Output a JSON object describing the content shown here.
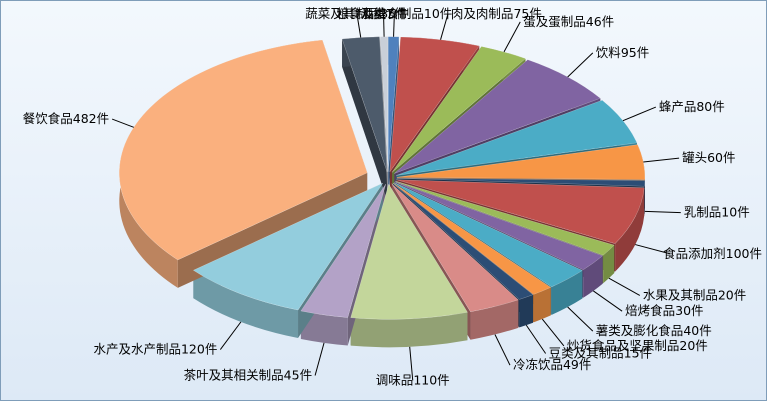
{
  "chart_data": {
    "type": "pie",
    "categories": [
      "粮食及粮食制品",
      "肉及肉制品",
      "蛋及蛋制品",
      "饮料",
      "蜂产品",
      "罐头",
      "乳制品",
      "食品添加剂",
      "水果及其制品",
      "焙烤食品",
      "薯类及膨化食品",
      "炒货食品及坚果制品",
      "豆类及其制品",
      "冷冻饮品",
      "调味品",
      "茶叶及其相关制品",
      "水产及水产制品",
      "餐饮食品",
      "蔬菜及其制品",
      "酒类"
    ],
    "values": [
      10,
      75,
      46,
      95,
      80,
      60,
      10,
      100,
      20,
      30,
      40,
      20,
      15,
      49,
      110,
      45,
      120,
      482,
      35,
      7
    ],
    "value_labels": [
      "10件",
      "75件",
      "46件",
      "95件",
      "80件",
      "60件",
      "10件",
      "100件",
      "20件",
      "30件",
      "40件",
      "20件",
      "15件",
      "49件",
      "110件",
      "45件",
      "120件",
      "482件",
      "35件",
      "7件"
    ],
    "colors": [
      "#4f81bd",
      "#c0504d",
      "#9bbb59",
      "#8064a2",
      "#4bacc6",
      "#f79646",
      "#2c4d75",
      "#c0504d",
      "#9bbb59",
      "#8064a2",
      "#4bacc6",
      "#f79646",
      "#2c4d75",
      "#d98b88",
      "#c3d69b",
      "#b3a2c7",
      "#93cddd",
      "#fab07e",
      "#4d5b6b",
      "#c9cfd8"
    ]
  }
}
